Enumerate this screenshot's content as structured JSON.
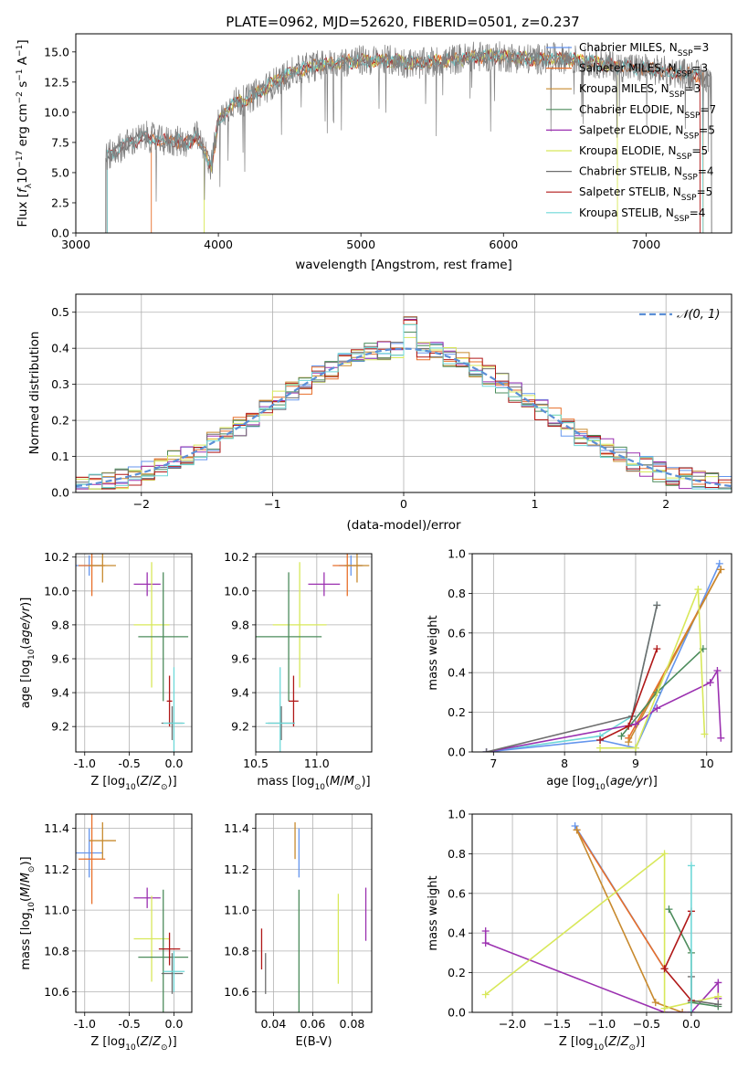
{
  "figure": {
    "title": "PLATE=0962, MJD=52620, FIBERID=0501, z=0.237"
  },
  "colors": {
    "Chabrier MILES": "#6495ed",
    "Salpeter MILES": "#e86f2a",
    "Kroupa MILES": "#c88a2e",
    "Chabrier ELODIE": "#4c8c5c",
    "Salpeter ELODIE": "#9b30b0",
    "Kroupa ELODIE": "#d8e85a",
    "Chabrier STELIB": "#6e6e6e",
    "Salpeter STELIB": "#b01818",
    "Kroupa STELIB": "#6fd8d8"
  },
  "chart_data": [
    {
      "id": "spectrum",
      "type": "line",
      "title": "PLATE=0962, MJD=52620, FIBERID=0501, z=0.237",
      "xlabel": "wavelength [Angstrom, rest frame]",
      "ylabel": "Flux [f_λ10^-17 erg cm^-2 s^-1 A^-1]",
      "xlim": [
        3000,
        7600
      ],
      "ylim": [
        0,
        16.5
      ],
      "xticks": [
        3000,
        4000,
        5000,
        6000,
        7000
      ],
      "yticks": [
        0.0,
        2.5,
        5.0,
        7.5,
        10.0,
        12.5,
        15.0
      ],
      "grid": false,
      "legend_position": "top-right",
      "legend": [
        {
          "prefix": "Chabrier MILES, N",
          "sub": "SSP",
          "suffix": "=3"
        },
        {
          "prefix": "Salpeter MILES, N",
          "sub": "SSP",
          "suffix": "=3"
        },
        {
          "prefix": "Kroupa MILES, N",
          "sub": "SSP",
          "suffix": "=3"
        },
        {
          "prefix": "Chabrier ELODIE, N",
          "sub": "SSP",
          "suffix": "=7"
        },
        {
          "prefix": "Salpeter ELODIE, N",
          "sub": "SSP",
          "suffix": "=5"
        },
        {
          "prefix": "Kroupa ELODIE, N",
          "sub": "SSP",
          "suffix": "=5"
        },
        {
          "prefix": "Chabrier STELIB, N",
          "sub": "SSP",
          "suffix": "=4"
        },
        {
          "prefix": "Salpeter STELIB, N",
          "sub": "SSP",
          "suffix": "=5"
        },
        {
          "prefix": "Kroupa STELIB, N",
          "sub": "SSP",
          "suffix": "=4"
        }
      ],
      "series": [
        {
          "model": "Chabrier STELIB",
          "start": 3210,
          "end": 7460
        },
        {
          "model": "Salpeter MILES",
          "start": 3530,
          "end": 7400
        },
        {
          "model": "Kroupa ELODIE",
          "start": 3900,
          "end": 6800
        },
        {
          "model": "Salpeter STELIB",
          "start": 3220,
          "end": 7380
        },
        {
          "model": "Kroupa STELIB",
          "start": 3220,
          "end": 7400
        }
      ],
      "data_trace": [
        [
          3210,
          6.2
        ],
        [
          3300,
          7.0
        ],
        [
          3400,
          7.6
        ],
        [
          3500,
          8.0
        ],
        [
          3600,
          7.6
        ],
        [
          3700,
          7.6
        ],
        [
          3800,
          7.5
        ],
        [
          3850,
          8.0
        ],
        [
          3950,
          5.5
        ],
        [
          4000,
          9.2
        ],
        [
          4100,
          10.8
        ],
        [
          4200,
          11.0
        ],
        [
          4300,
          11.8
        ],
        [
          4400,
          12.5
        ],
        [
          4500,
          13.2
        ],
        [
          4600,
          13.6
        ],
        [
          4700,
          13.9
        ],
        [
          4800,
          14.0
        ],
        [
          4900,
          14.2
        ],
        [
          5000,
          14.3
        ],
        [
          5200,
          14.3
        ],
        [
          5400,
          14.0
        ],
        [
          5600,
          14.3
        ],
        [
          5800,
          14.6
        ],
        [
          6000,
          14.6
        ],
        [
          6200,
          14.4
        ],
        [
          6400,
          14.5
        ],
        [
          6600,
          14.2
        ],
        [
          6800,
          13.8
        ],
        [
          7000,
          13.6
        ],
        [
          7200,
          13.3
        ],
        [
          7400,
          13.0
        ],
        [
          7460,
          12.8
        ]
      ]
    },
    {
      "id": "residuals",
      "type": "histogram",
      "xlabel": "(data-model)/error",
      "ylabel": "Normed distribution",
      "xlim": [
        -2.5,
        2.5
      ],
      "ylim": [
        0,
        0.55
      ],
      "xticks": [
        -2,
        -1,
        0,
        1,
        2
      ],
      "yticks": [
        0.0,
        0.1,
        0.2,
        0.3,
        0.4,
        0.5
      ],
      "grid": true,
      "legend_position": "top-right",
      "legend_label": "𝒩(0, 1)",
      "bin_width": 0.1
    },
    {
      "id": "age-vs-Z",
      "type": "errorbar",
      "xlabel": "Z [log10(Z/Z⊙)]",
      "ylabel": "age [log10(age/yr)]",
      "xlim": [
        -1.1,
        0.2
      ],
      "ylim": [
        9.05,
        10.22
      ],
      "xticks": [
        -1.0,
        -0.5,
        0.0
      ],
      "yticks": [
        9.2,
        9.4,
        9.6,
        9.8,
        10.0,
        10.2
      ],
      "grid": true,
      "points": [
        {
          "model": "Chabrier MILES",
          "x": -0.95,
          "xerr": 0.15,
          "y": 10.15,
          "yerr": 0.06
        },
        {
          "model": "Salpeter MILES",
          "x": -0.92,
          "xerr": 0.15,
          "y": 10.15,
          "yerr": 0.18
        },
        {
          "model": "Kroupa MILES",
          "x": -0.8,
          "xerr": 0.15,
          "y": 10.15,
          "yerr": 0.1
        },
        {
          "model": "Salpeter ELODIE",
          "x": -0.3,
          "xerr": 0.15,
          "y": 10.04,
          "yerr": 0.07
        },
        {
          "model": "Kroupa ELODIE",
          "x": -0.25,
          "xerr": 0.2,
          "y": 9.8,
          "yerr": 0.37
        },
        {
          "model": "Chabrier ELODIE",
          "x": -0.12,
          "xerr": 0.28,
          "y": 9.73,
          "yerr": 0.38
        },
        {
          "model": "Chabrier STELIB",
          "x": -0.02,
          "xerr": 0.12,
          "y": 9.22,
          "yerr": 0.1
        },
        {
          "model": "Salpeter STELIB",
          "x": -0.05,
          "xerr": 0.03,
          "y": 9.35,
          "yerr": 0.15
        },
        {
          "model": "Kroupa STELIB",
          "x": 0.0,
          "xerr": 0.12,
          "y": 9.22,
          "yerr": 0.33
        }
      ]
    },
    {
      "id": "age-vs-mass",
      "type": "errorbar",
      "xlabel": "mass [log10(M/M⊙)]",
      "ylabel": "",
      "xlim": [
        10.5,
        11.45
      ],
      "ylim": [
        9.05,
        10.22
      ],
      "xticks": [
        10.5,
        11.0
      ],
      "yticks": [
        9.2,
        9.4,
        9.6,
        9.8,
        10.0,
        10.2
      ],
      "grid": true,
      "points": [
        {
          "model": "Chabrier MILES",
          "x": 11.28,
          "xerr": 0.1,
          "y": 10.15,
          "yerr": 0.06
        },
        {
          "model": "Salpeter MILES",
          "x": 11.25,
          "xerr": 0.12,
          "y": 10.15,
          "yerr": 0.18
        },
        {
          "model": "Kroupa MILES",
          "x": 11.33,
          "xerr": 0.1,
          "y": 10.15,
          "yerr": 0.1
        },
        {
          "model": "Salpeter ELODIE",
          "x": 11.06,
          "xerr": 0.13,
          "y": 10.04,
          "yerr": 0.07
        },
        {
          "model": "Kroupa ELODIE",
          "x": 10.86,
          "xerr": 0.22,
          "y": 9.8,
          "yerr": 0.37
        },
        {
          "model": "Chabrier ELODIE",
          "x": 10.77,
          "xerr": 0.27,
          "y": 9.73,
          "yerr": 0.38
        },
        {
          "model": "Chabrier STELIB",
          "x": 10.71,
          "xerr": 0.11,
          "y": 9.22,
          "yerr": 0.1
        },
        {
          "model": "Salpeter STELIB",
          "x": 10.81,
          "xerr": 0.04,
          "y": 9.35,
          "yerr": 0.15
        },
        {
          "model": "Kroupa STELIB",
          "x": 10.7,
          "xerr": 0.12,
          "y": 9.22,
          "yerr": 0.33
        }
      ]
    },
    {
      "id": "weight-vs-age",
      "type": "line",
      "xlabel": "age [log10(age/yr)]",
      "ylabel": "mass weight",
      "xlim": [
        6.7,
        10.35
      ],
      "ylim": [
        0,
        1.0
      ],
      "xticks": [
        7,
        8,
        9,
        10
      ],
      "yticks": [
        0.0,
        0.2,
        0.4,
        0.6,
        0.8,
        1.0
      ],
      "grid": true,
      "series": [
        {
          "model": "Kroupa STELIB",
          "points": [
            [
              6.9,
              0.0
            ],
            [
              8.5,
              0.08
            ],
            [
              8.95,
              0.18
            ],
            [
              9.3,
              0.74
            ]
          ]
        },
        {
          "model": "Chabrier MILES",
          "points": [
            [
              6.9,
              0.0
            ],
            [
              8.5,
              0.06
            ],
            [
              9.0,
              0.02
            ],
            [
              10.18,
              0.95
            ]
          ]
        },
        {
          "model": "Salpeter MILES",
          "points": [
            [
              8.9,
              0.07
            ],
            [
              10.2,
              0.92
            ]
          ]
        },
        {
          "model": "Kroupa MILES",
          "points": [
            [
              8.9,
              0.05
            ],
            [
              10.2,
              0.92
            ]
          ]
        },
        {
          "model": "Chabrier ELODIE",
          "points": [
            [
              8.8,
              0.08
            ],
            [
              9.3,
              0.3
            ],
            [
              9.95,
              0.52
            ]
          ]
        },
        {
          "model": "Salpeter ELODIE",
          "points": [
            [
              6.9,
              0.0
            ],
            [
              9.0,
              0.14
            ],
            [
              9.3,
              0.22
            ],
            [
              10.05,
              0.35
            ],
            [
              10.15,
              0.41
            ],
            [
              10.2,
              0.07
            ]
          ]
        },
        {
          "model": "Kroupa ELODIE",
          "points": [
            [
              8.5,
              0.02
            ],
            [
              9.0,
              0.02
            ],
            [
              9.88,
              0.82
            ],
            [
              9.97,
              0.09
            ]
          ]
        },
        {
          "model": "Chabrier STELIB",
          "points": [
            [
              6.9,
              0.0
            ],
            [
              8.95,
              0.18
            ],
            [
              9.3,
              0.74
            ]
          ]
        },
        {
          "model": "Salpeter STELIB",
          "points": [
            [
              8.5,
              0.06
            ],
            [
              8.9,
              0.13
            ],
            [
              9.3,
              0.52
            ]
          ]
        }
      ]
    },
    {
      "id": "mass-vs-Z",
      "type": "errorbar",
      "xlabel": "Z [log10(Z/Z⊙)]",
      "ylabel": "mass [log10(M/M⊙)]",
      "xlim": [
        -1.1,
        0.2
      ],
      "ylim": [
        10.5,
        11.47
      ],
      "xticks": [
        -1.0,
        -0.5,
        0.0
      ],
      "yticks": [
        10.6,
        10.8,
        11.0,
        11.2,
        11.4
      ],
      "grid": true,
      "points": [
        {
          "model": "Chabrier MILES",
          "x": -0.95,
          "xerr": 0.15,
          "y": 11.28,
          "yerr": 0.12
        },
        {
          "model": "Salpeter MILES",
          "x": -0.92,
          "xerr": 0.15,
          "y": 11.25,
          "yerr": 0.22
        },
        {
          "model": "Kroupa MILES",
          "x": -0.8,
          "xerr": 0.15,
          "y": 11.34,
          "yerr": 0.09
        },
        {
          "model": "Salpeter ELODIE",
          "x": -0.3,
          "xerr": 0.15,
          "y": 11.06,
          "yerr": 0.05
        },
        {
          "model": "Kroupa ELODIE",
          "x": -0.25,
          "xerr": 0.2,
          "y": 10.86,
          "yerr": 0.21
        },
        {
          "model": "Chabrier ELODIE",
          "x": -0.12,
          "xerr": 0.28,
          "y": 10.77,
          "yerr": 0.33
        },
        {
          "model": "Chabrier STELIB",
          "x": -0.02,
          "xerr": 0.12,
          "y": 10.69,
          "yerr": 0.1
        },
        {
          "model": "Salpeter STELIB",
          "x": -0.05,
          "xerr": 0.12,
          "y": 10.81,
          "yerr": 0.08
        },
        {
          "model": "Kroupa STELIB",
          "x": 0.0,
          "xerr": 0.12,
          "y": 10.7,
          "yerr": 0.1
        }
      ]
    },
    {
      "id": "mass-vs-EBV",
      "type": "errorbar",
      "xlabel": "E(B-V)",
      "ylabel": "",
      "xlim": [
        0.031,
        0.09
      ],
      "ylim": [
        10.5,
        11.47
      ],
      "xticks": [
        0.04,
        0.06,
        0.08
      ],
      "yticks": [
        10.6,
        10.8,
        11.0,
        11.2,
        11.4
      ],
      "grid": true,
      "points": [
        {
          "model": "Salpeter STELIB",
          "x": 0.034,
          "y": 10.81,
          "yerr": 0.1
        },
        {
          "model": "Chabrier STELIB",
          "x": 0.036,
          "y": 10.69,
          "yerr": 0.1
        },
        {
          "model": "Kroupa MILES",
          "x": 0.051,
          "y": 11.34,
          "yerr": 0.09
        },
        {
          "model": "Chabrier MILES",
          "x": 0.053,
          "y": 11.28,
          "yerr": 0.12
        },
        {
          "model": "Chabrier ELODIE",
          "x": 0.053,
          "y": 10.77,
          "yerr": 0.33
        },
        {
          "model": "Kroupa ELODIE",
          "x": 0.073,
          "y": 10.86,
          "yerr": 0.22
        },
        {
          "model": "Salpeter ELODIE",
          "x": 0.087,
          "y": 10.98,
          "yerr": 0.13
        }
      ]
    },
    {
      "id": "weight-vs-Z",
      "type": "line",
      "xlabel": "Z [log10(Z/Z⊙)]",
      "ylabel": "mass weight",
      "xlim": [
        -2.45,
        0.45
      ],
      "ylim": [
        0,
        1.0
      ],
      "xticks": [
        -2.0,
        -1.5,
        -1.0,
        -0.5,
        0.0
      ],
      "yticks": [
        0.0,
        0.2,
        0.4,
        0.6,
        0.8,
        1.0
      ],
      "grid": true,
      "series": [
        {
          "model": "Chabrier MILES",
          "points": [
            [
              -1.3,
              0.94
            ],
            [
              -0.3,
              0.22
            ]
          ]
        },
        {
          "model": "Salpeter MILES",
          "points": [
            [
              -1.28,
              0.92
            ],
            [
              -0.3,
              0.22
            ]
          ]
        },
        {
          "model": "Kroupa MILES",
          "points": [
            [
              -1.28,
              0.92
            ],
            [
              -0.4,
              0.05
            ],
            [
              -0.1,
              0.0
            ]
          ]
        },
        {
          "model": "Salpeter ELODIE",
          "points": [
            [
              -2.3,
              0.41
            ],
            [
              -2.3,
              0.35
            ],
            [
              -0.3,
              0.0
            ],
            [
              0.0,
              0.0
            ],
            [
              0.3,
              0.15
            ],
            [
              0.3,
              0.07
            ]
          ]
        },
        {
          "model": "Kroupa ELODIE",
          "points": [
            [
              -2.3,
              0.09
            ],
            [
              -0.3,
              0.8
            ],
            [
              -0.3,
              0.02
            ],
            [
              0.3,
              0.08
            ]
          ]
        },
        {
          "model": "Chabrier ELODIE",
          "points": [
            [
              -0.25,
              0.52
            ],
            [
              0.0,
              0.3
            ],
            [
              0.0,
              0.05
            ],
            [
              0.3,
              0.03
            ]
          ]
        },
        {
          "model": "Chabrier STELIB",
          "points": [
            [
              0.0,
              0.18
            ],
            [
              0.0,
              0.06
            ],
            [
              0.3,
              0.04
            ]
          ]
        },
        {
          "model": "Salpeter STELIB",
          "points": [
            [
              0.0,
              0.51
            ],
            [
              -0.3,
              0.22
            ],
            [
              0.0,
              0.06
            ]
          ]
        },
        {
          "model": "Kroupa STELIB",
          "points": [
            [
              0.0,
              0.74
            ],
            [
              0.0,
              0.0
            ]
          ]
        }
      ]
    }
  ]
}
